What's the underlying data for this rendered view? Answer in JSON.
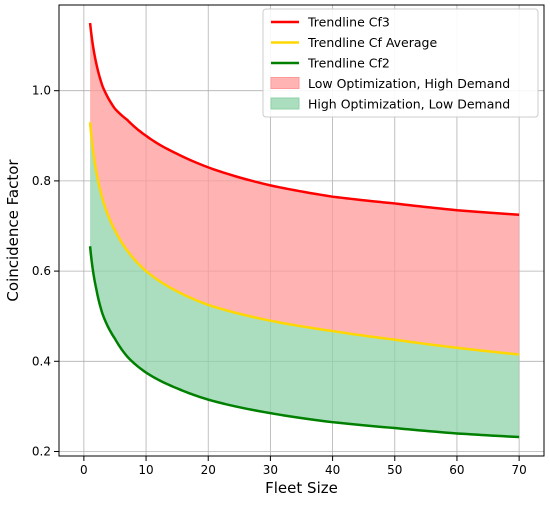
{
  "chart_data": {
    "type": "area",
    "title": "",
    "xlabel": "Fleet Size",
    "ylabel": "Coincidence Factor",
    "xlim": [
      -4,
      74
    ],
    "ylim": [
      0.19,
      1.19
    ],
    "xticks": [
      0,
      10,
      20,
      30,
      40,
      50,
      60,
      70
    ],
    "yticks": [
      0.2,
      0.4,
      0.6,
      0.8,
      1.0
    ],
    "xtick_labels": [
      "0",
      "10",
      "20",
      "30",
      "40",
      "50",
      "60",
      "70"
    ],
    "ytick_labels": [
      "0.2",
      "0.4",
      "0.6",
      "0.8",
      "1.0"
    ],
    "grid": true,
    "legend_position": "top-right",
    "x": [
      1,
      2,
      3,
      5,
      7,
      10,
      15,
      20,
      30,
      40,
      50,
      60,
      70
    ],
    "series": [
      {
        "name": "Trendline Cf3",
        "kind": "line",
        "color": "#ff0000",
        "values": [
          1.15,
          1.06,
          1.01,
          0.96,
          0.935,
          0.9,
          0.86,
          0.83,
          0.79,
          0.765,
          0.75,
          0.735,
          0.725
        ]
      },
      {
        "name": "Trendline Cf Average",
        "kind": "line",
        "color": "#ffd700",
        "values": [
          0.93,
          0.82,
          0.76,
          0.69,
          0.645,
          0.6,
          0.555,
          0.525,
          0.49,
          0.467,
          0.448,
          0.43,
          0.415
        ]
      },
      {
        "name": "Trendline Cf2",
        "kind": "line",
        "color": "#008000",
        "values": [
          0.655,
          0.56,
          0.505,
          0.45,
          0.41,
          0.375,
          0.34,
          0.315,
          0.285,
          0.265,
          0.252,
          0.24,
          0.232
        ]
      }
    ],
    "fills": [
      {
        "name": "Low Optimization, High Demand",
        "between": [
          "Trendline Cf3",
          "Trendline Cf Average"
        ],
        "color": "#ff9999"
      },
      {
        "name": "High Optimization, Low Demand",
        "between": [
          "Trendline Cf Average",
          "Trendline Cf2"
        ],
        "color": "#8fd3a8"
      }
    ]
  }
}
